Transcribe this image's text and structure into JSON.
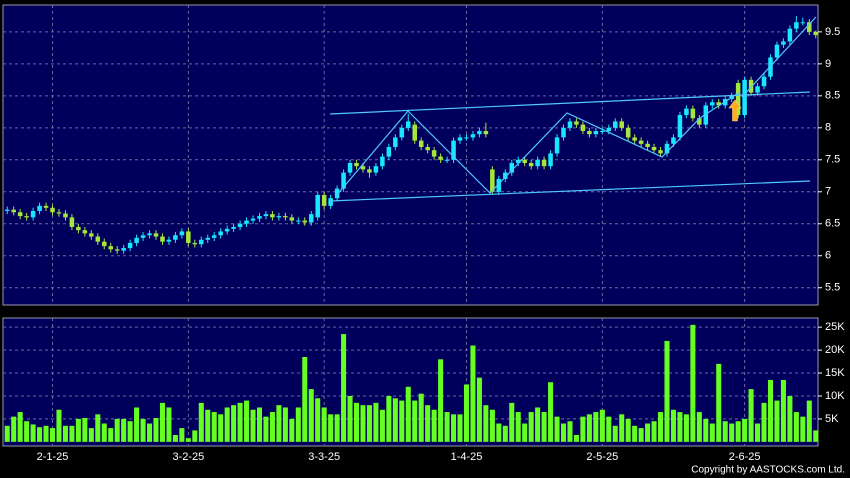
{
  "chart_data": [
    {
      "type": "candlestick",
      "categories": [
        null,
        null,
        null,
        null,
        null,
        null,
        null,
        "2-1-25",
        null,
        null,
        null,
        null,
        null,
        null,
        null,
        null,
        null,
        null,
        null,
        null,
        null,
        null,
        null,
        null,
        null,
        null,
        null,
        null,
        "3-2-25",
        null,
        null,
        null,
        null,
        null,
        null,
        null,
        null,
        null,
        null,
        null,
        null,
        null,
        null,
        null,
        null,
        null,
        null,
        null,
        null,
        "3-3-25",
        null,
        null,
        null,
        null,
        null,
        null,
        null,
        null,
        null,
        null,
        null,
        null,
        null,
        null,
        null,
        null,
        null,
        null,
        null,
        null,
        null,
        "1-4-25",
        null,
        null,
        null,
        null,
        null,
        null,
        null,
        null,
        null,
        null,
        null,
        null,
        null,
        null,
        null,
        null,
        null,
        null,
        null,
        null,
        "2-5-25",
        null,
        null,
        null,
        null,
        null,
        null,
        null,
        null,
        null,
        null,
        null,
        null,
        null,
        null,
        null,
        null,
        null,
        null,
        null,
        null,
        null,
        "2-6-25",
        null,
        null,
        null,
        null,
        null,
        null,
        null,
        null,
        null,
        null,
        null
      ],
      "open": [
        6.7,
        6.72,
        6.68,
        6.62,
        6.6,
        6.7,
        6.78,
        6.75,
        6.68,
        6.66,
        6.6,
        6.45,
        6.4,
        6.35,
        6.3,
        6.22,
        6.15,
        6.1,
        6.08,
        6.12,
        6.2,
        6.28,
        6.32,
        6.35,
        6.3,
        6.22,
        6.25,
        6.32,
        6.38,
        6.2,
        6.18,
        6.25,
        6.28,
        6.32,
        6.38,
        6.42,
        6.45,
        6.5,
        6.55,
        6.58,
        6.62,
        6.65,
        6.6,
        6.62,
        6.6,
        6.55,
        6.55,
        6.52,
        6.6,
        6.95,
        6.78,
        6.9,
        7.05,
        7.3,
        7.45,
        7.4,
        7.35,
        7.3,
        7.4,
        7.55,
        7.7,
        7.85,
        8.0,
        8.05,
        7.8,
        7.7,
        7.65,
        7.55,
        7.5,
        7.5,
        7.8,
        7.85,
        7.85,
        7.9,
        7.95,
        7.35,
        7.0,
        7.2,
        7.3,
        7.45,
        7.5,
        7.45,
        7.4,
        7.5,
        7.4,
        7.6,
        7.85,
        8.0,
        8.1,
        8.05,
        7.95,
        7.9,
        7.95,
        7.95,
        8.0,
        8.1,
        8.0,
        7.85,
        7.8,
        7.75,
        7.7,
        7.65,
        7.6,
        7.75,
        7.85,
        8.2,
        8.3,
        8.15,
        8.05,
        8.35,
        8.4,
        8.35,
        8.45,
        8.7,
        8.2,
        8.75,
        8.55,
        8.65,
        8.8,
        9.1,
        9.3,
        9.35,
        9.55,
        9.65,
        9.65,
        9.5
      ],
      "high": [
        6.77,
        6.77,
        6.73,
        6.67,
        6.75,
        6.83,
        6.83,
        6.8,
        6.73,
        6.71,
        6.65,
        6.5,
        6.45,
        6.4,
        6.35,
        6.27,
        6.2,
        6.15,
        6.17,
        6.25,
        6.33,
        6.37,
        6.4,
        6.4,
        6.35,
        6.3,
        6.37,
        6.43,
        6.43,
        6.25,
        6.3,
        6.33,
        6.37,
        6.43,
        6.47,
        6.5,
        6.55,
        6.6,
        6.63,
        6.67,
        6.7,
        6.7,
        6.67,
        6.67,
        6.65,
        6.6,
        6.6,
        6.7,
        7.0,
        7.0,
        6.95,
        7.1,
        7.35,
        7.5,
        7.5,
        7.45,
        7.4,
        7.45,
        7.6,
        7.75,
        7.9,
        8.05,
        8.22,
        8.1,
        7.85,
        7.75,
        7.7,
        7.6,
        7.55,
        7.85,
        7.9,
        7.9,
        7.95,
        8.0,
        8.08,
        7.4,
        7.25,
        7.35,
        7.5,
        7.55,
        7.55,
        7.5,
        7.55,
        7.55,
        7.65,
        7.9,
        8.05,
        8.15,
        8.15,
        8.1,
        8.0,
        8.0,
        8.0,
        8.05,
        8.15,
        8.15,
        8.05,
        7.9,
        7.85,
        7.8,
        7.75,
        7.7,
        7.8,
        7.9,
        8.25,
        8.35,
        8.35,
        8.2,
        8.4,
        8.45,
        8.45,
        8.5,
        8.55,
        8.75,
        8.8,
        8.8,
        8.7,
        8.85,
        9.15,
        9.35,
        9.4,
        9.6,
        9.75,
        9.72,
        9.7,
        9.52
      ],
      "low": [
        6.65,
        6.63,
        6.57,
        6.55,
        6.55,
        6.65,
        6.7,
        6.63,
        6.61,
        6.55,
        6.4,
        6.35,
        6.3,
        6.25,
        6.17,
        6.1,
        6.05,
        6.03,
        6.03,
        6.07,
        6.15,
        6.23,
        6.27,
        6.25,
        6.17,
        6.17,
        6.2,
        6.27,
        6.15,
        6.13,
        6.13,
        6.2,
        6.23,
        6.27,
        6.33,
        6.37,
        6.4,
        6.45,
        6.5,
        6.53,
        6.57,
        6.55,
        6.55,
        6.55,
        6.5,
        6.5,
        6.47,
        6.47,
        6.55,
        6.73,
        6.73,
        6.85,
        7.0,
        7.25,
        7.35,
        7.3,
        7.22,
        7.25,
        7.35,
        7.5,
        7.65,
        7.8,
        7.95,
        7.75,
        7.65,
        7.6,
        7.5,
        7.45,
        7.45,
        7.45,
        7.75,
        7.8,
        7.8,
        7.85,
        7.85,
        6.95,
        6.95,
        7.15,
        7.25,
        7.4,
        7.4,
        7.35,
        7.35,
        7.35,
        7.35,
        7.55,
        7.8,
        7.95,
        8.0,
        7.9,
        7.85,
        7.85,
        7.9,
        7.9,
        7.95,
        7.95,
        7.8,
        7.75,
        7.7,
        7.65,
        7.6,
        7.55,
        7.55,
        7.7,
        7.8,
        8.15,
        8.1,
        8.0,
        8.0,
        8.3,
        8.3,
        8.3,
        8.4,
        8.15,
        8.15,
        8.5,
        8.5,
        8.6,
        8.75,
        9.05,
        9.25,
        9.3,
        9.5,
        9.6,
        9.45,
        9.4
      ],
      "close": [
        6.72,
        6.68,
        6.62,
        6.6,
        6.7,
        6.78,
        6.75,
        6.68,
        6.66,
        6.6,
        6.45,
        6.4,
        6.35,
        6.3,
        6.22,
        6.15,
        6.1,
        6.08,
        6.12,
        6.2,
        6.28,
        6.32,
        6.35,
        6.3,
        6.22,
        6.25,
        6.32,
        6.38,
        6.2,
        6.18,
        6.25,
        6.28,
        6.32,
        6.38,
        6.42,
        6.45,
        6.5,
        6.55,
        6.58,
        6.62,
        6.65,
        6.6,
        6.62,
        6.6,
        6.55,
        6.55,
        6.52,
        6.65,
        6.95,
        6.78,
        6.9,
        7.05,
        7.3,
        7.45,
        7.4,
        7.35,
        7.3,
        7.4,
        7.55,
        7.7,
        7.85,
        8.0,
        8.1,
        7.8,
        7.7,
        7.65,
        7.55,
        7.5,
        7.5,
        7.8,
        7.85,
        7.85,
        7.9,
        7.95,
        7.9,
        7.0,
        7.2,
        7.3,
        7.45,
        7.5,
        7.45,
        7.4,
        7.5,
        7.4,
        7.6,
        7.85,
        8.0,
        8.1,
        8.05,
        7.95,
        7.9,
        7.95,
        7.95,
        8.0,
        8.1,
        8.0,
        7.85,
        7.8,
        7.75,
        7.7,
        7.65,
        7.6,
        7.75,
        7.85,
        8.2,
        8.3,
        8.15,
        8.05,
        8.35,
        8.4,
        8.35,
        8.45,
        8.5,
        8.2,
        8.75,
        8.55,
        8.65,
        8.8,
        9.1,
        9.3,
        9.35,
        9.55,
        9.65,
        9.65,
        9.5,
        9.45
      ],
      "up_color": "#19e6ff",
      "down_color": "#a6e63c",
      "ylim": [
        5.23,
        9.92
      ],
      "yticks": [
        5.5,
        6,
        6.5,
        7,
        7.5,
        8,
        8.5,
        9,
        9.5
      ],
      "grid": true
    },
    {
      "type": "bar",
      "values": [
        3500,
        5500,
        6500,
        4500,
        3800,
        3200,
        3500,
        3000,
        7000,
        3500,
        3500,
        5000,
        5200,
        3000,
        6000,
        4000,
        3000,
        5000,
        5000,
        4500,
        7500,
        5000,
        4000,
        5200,
        8500,
        7500,
        1500,
        3000,
        800,
        2500,
        8500,
        7000,
        6500,
        6000,
        7500,
        8000,
        8500,
        9000,
        7000,
        7500,
        5500,
        6500,
        8000,
        7500,
        5000,
        7500,
        18500,
        11500,
        9500,
        7500,
        6000,
        6000,
        23500,
        10000,
        8500,
        8000,
        8000,
        8500,
        7000,
        10000,
        9500,
        9000,
        12000,
        9000,
        10500,
        8000,
        7000,
        18000,
        6500,
        6000,
        6000,
        12500,
        21000,
        14000,
        8000,
        7000,
        4000,
        3500,
        8500,
        6500,
        4000,
        6500,
        7500,
        6500,
        13000,
        5500,
        4000,
        4500,
        1500,
        5500,
        6000,
        6500,
        7000,
        5500,
        3500,
        6000,
        5000,
        3500,
        3000,
        4000,
        4500,
        6500,
        22000,
        7000,
        6500,
        6000,
        25500,
        6500,
        5000,
        4000,
        17000,
        4500,
        4000,
        4500,
        5000,
        11500,
        4000,
        8500,
        13500,
        9000,
        13500,
        10000,
        6500,
        5500,
        9000,
        2500
      ],
      "color": "#66ff22",
      "ylim": [
        -900,
        27000
      ],
      "yticks": [
        {
          "value": 5000,
          "label": "5K"
        },
        {
          "value": 10000,
          "label": "10K"
        },
        {
          "value": 15000,
          "label": "15K"
        },
        {
          "value": 20000,
          "label": "20K"
        },
        {
          "value": 25000,
          "label": "25K"
        }
      ],
      "grid": true
    }
  ],
  "copyright": "Copyright by AASTOCKS.com Ltd."
}
